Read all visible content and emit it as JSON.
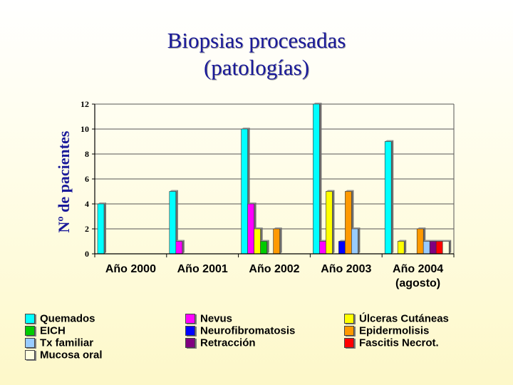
{
  "chart_data": {
    "type": "bar",
    "title": [
      "Biopsias procesadas",
      "(patologías)"
    ],
    "ylabel": "Nº de pacientes",
    "xlabel": "",
    "ylim": [
      0,
      12
    ],
    "yticks": [
      0,
      2,
      4,
      6,
      8,
      10,
      12
    ],
    "grid": true,
    "legend_position": "bottom",
    "categories": [
      "Año 2000",
      "Año 2001",
      "Año 2002",
      "Año 2003",
      "Año 2004\n(agosto)"
    ],
    "series": [
      {
        "name": "Quemados",
        "color": "#00ffff",
        "values": [
          4,
          5,
          10,
          12,
          9
        ]
      },
      {
        "name": "Nevus",
        "color": "#ff00ff",
        "values": [
          0,
          1,
          4,
          1,
          0
        ]
      },
      {
        "name": "Úlceras Cutáneas",
        "color": "#ffff00",
        "values": [
          0,
          0,
          2,
          5,
          1
        ]
      },
      {
        "name": "EICH",
        "color": "#00cc00",
        "values": [
          0,
          0,
          1,
          0,
          0
        ]
      },
      {
        "name": "Neurofibromatosis",
        "color": "#0000ff",
        "values": [
          0,
          0,
          0,
          1,
          0
        ]
      },
      {
        "name": "Epidermolisis",
        "color": "#ff9900",
        "values": [
          0,
          0,
          2,
          5,
          2
        ]
      },
      {
        "name": "Tx familiar",
        "color": "#99ccff",
        "values": [
          0,
          0,
          0,
          2,
          1
        ]
      },
      {
        "name": "Retracción",
        "color": "#800080",
        "values": [
          0,
          0,
          0,
          0,
          1
        ]
      },
      {
        "name": "Fascitis Necrot.",
        "color": "#ff0000",
        "values": [
          0,
          0,
          0,
          0,
          1
        ]
      },
      {
        "name": "Mucosa oral",
        "color": "#ffffe0",
        "values": [
          0,
          0,
          0,
          0,
          1
        ]
      }
    ]
  }
}
